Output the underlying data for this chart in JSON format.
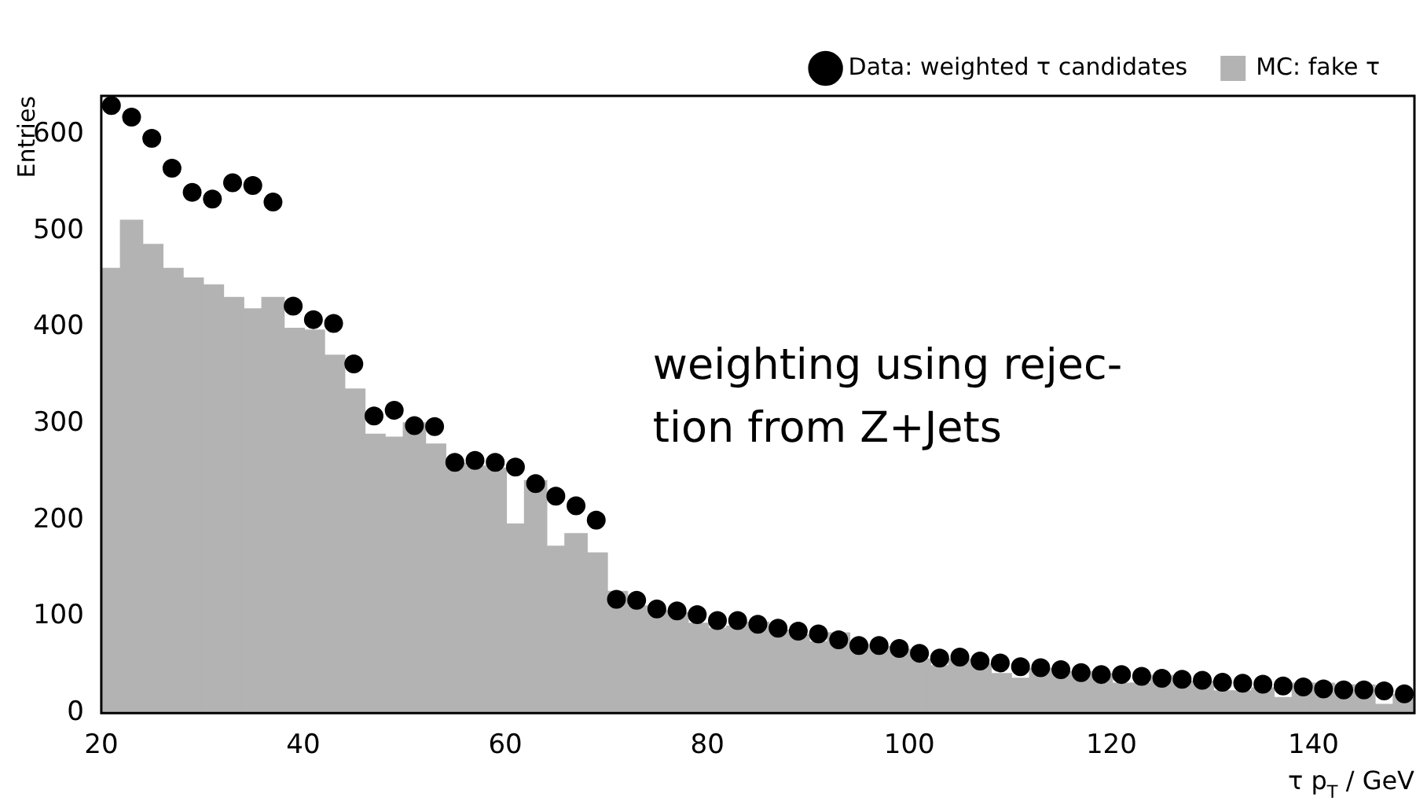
{
  "chart_data": {
    "type": "histogram",
    "xlabel": "τ p$_{T}$ / GeV",
    "ylabel": "Entries",
    "annotations": [
      "weighting using rejec-\ntion from Z+Jets"
    ],
    "bins": [
      20,
      22,
      24,
      26,
      28,
      30,
      32,
      34,
      36,
      38,
      40,
      42,
      44,
      46,
      48,
      50,
      52,
      54,
      56,
      58,
      60,
      62,
      64,
      66,
      68,
      70,
      72,
      74,
      76,
      78,
      80,
      82,
      84,
      86,
      88,
      90,
      92,
      94,
      96,
      98,
      100,
      102,
      104,
      106,
      108,
      110,
      112,
      114,
      116,
      118,
      120,
      122,
      124,
      126,
      128,
      130,
      132,
      134,
      136,
      138,
      140,
      142,
      144,
      146,
      148,
      150
    ],
    "series": [
      {
        "name": "Data: weighted τ candidates",
        "type": "scatter",
        "color": "#000000",
        "x": [
          21,
          23,
          25,
          27,
          29,
          31,
          33,
          35,
          37,
          39,
          41,
          43,
          45,
          47,
          49,
          51,
          53,
          55,
          57,
          59,
          61,
          63,
          65,
          67,
          69,
          71,
          73,
          75,
          77,
          79,
          81,
          83,
          85,
          87,
          89,
          91,
          93,
          95,
          97,
          99,
          101,
          103,
          105,
          107,
          109,
          111,
          113,
          115,
          117,
          119,
          121,
          123,
          125,
          127,
          129,
          131,
          133,
          135,
          137,
          139,
          141,
          143,
          145,
          147,
          149
        ],
        "values": [
          630,
          618,
          596,
          565,
          540,
          533,
          550,
          547,
          530,
          422,
          408,
          404,
          362,
          308,
          314,
          298,
          297,
          260,
          262,
          260,
          255,
          238,
          225,
          215,
          200,
          118,
          117,
          108,
          106,
          102,
          96,
          96,
          92,
          88,
          85,
          82,
          76,
          70,
          70,
          67,
          62,
          57,
          58,
          54,
          52,
          48,
          47,
          45,
          42,
          40,
          40,
          38,
          36,
          35,
          34,
          32,
          31,
          30,
          28,
          27,
          25,
          24,
          24,
          23,
          20
        ]
      },
      {
        "name": "MC: fake τ",
        "type": "histogram",
        "color": "#b3b3b3",
        "values": [
          460,
          510,
          485,
          460,
          450,
          443,
          430,
          418,
          430,
          398,
          396,
          370,
          335,
          288,
          285,
          300,
          278,
          258,
          255,
          253,
          195,
          240,
          172,
          185,
          165,
          125,
          110,
          105,
          103,
          92,
          87,
          89,
          93,
          85,
          80,
          73,
          82,
          70,
          68,
          65,
          55,
          48,
          55,
          50,
          40,
          35,
          45,
          38,
          42,
          40,
          30,
          30,
          38,
          32,
          32,
          22,
          22,
          25,
          15,
          30,
          30,
          28,
          28,
          8,
          18
        ]
      }
    ],
    "xlim": [
      20,
      150
    ],
    "xticks": [
      20,
      40,
      60,
      80,
      100,
      120,
      140
    ],
    "ylim": [
      0,
      640
    ],
    "yticks": [
      0,
      100,
      200,
      300,
      400,
      500,
      600
    ],
    "legend": "top right",
    "marker": "circle"
  }
}
